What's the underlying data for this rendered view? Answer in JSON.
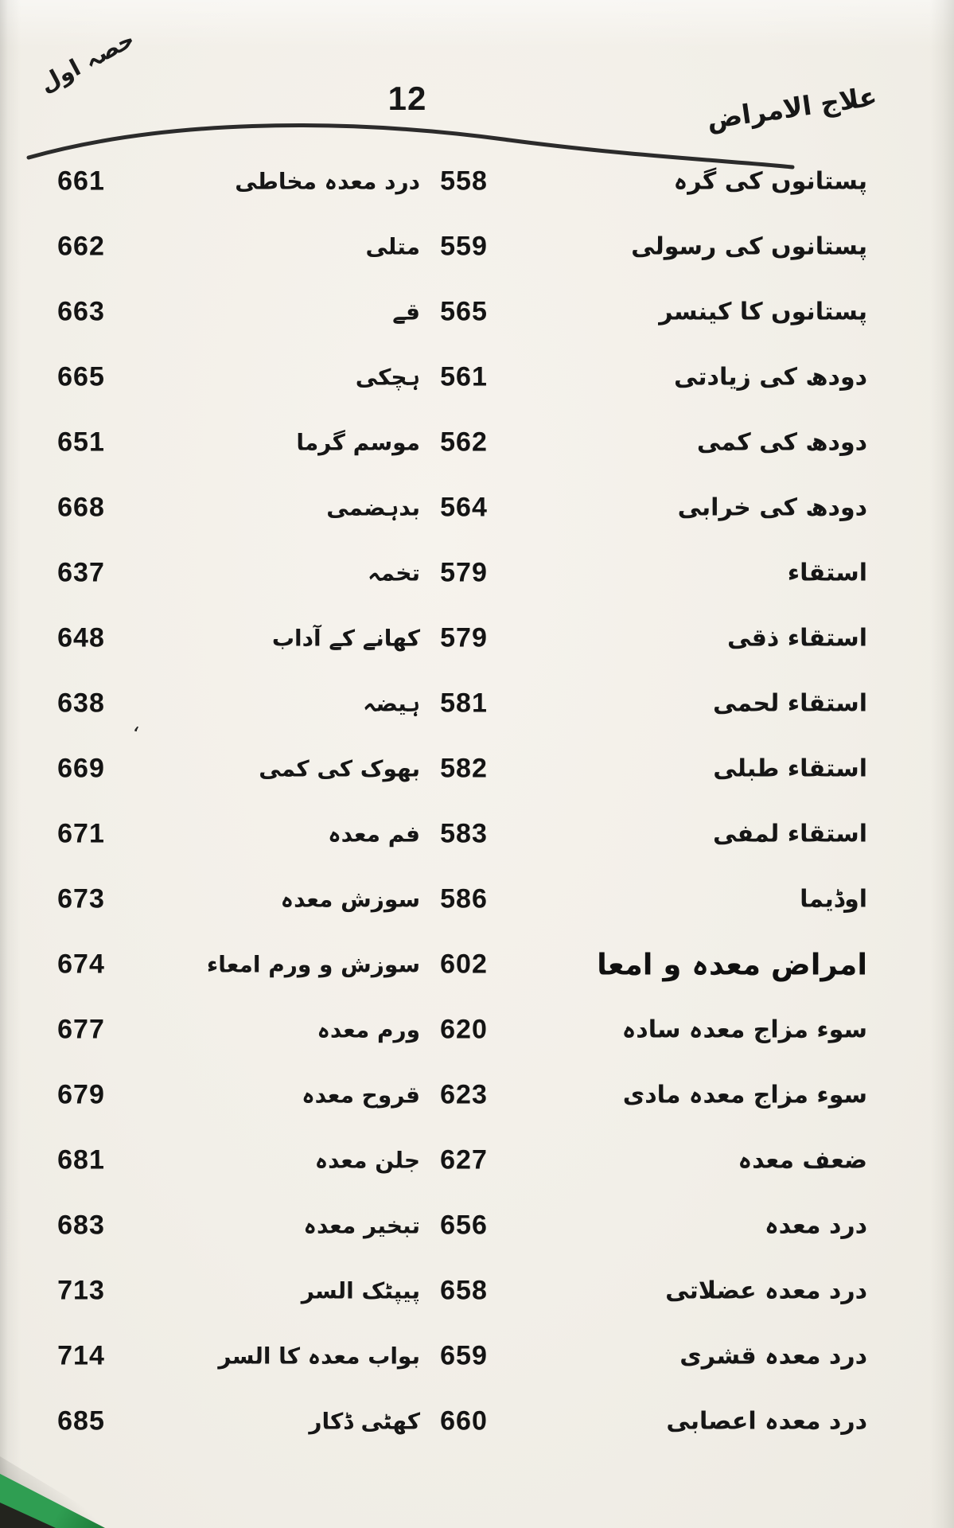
{
  "header": {
    "left": "حصہ اول",
    "page_number": "12",
    "right": "علاج الامراض"
  },
  "stray_mark": "،",
  "colors": {
    "ink": "#1b1b1b",
    "paper": "#f2efe8",
    "green_cover": "#2f9e52",
    "green_cover_dark": "#1d7a38",
    "corner_shadow": "#23241e"
  },
  "index": {
    "rows": [
      {
        "left_page": "661",
        "left_title": "درد معدہ مخاطی",
        "right_page": "558",
        "right_title": "پستانوں کی گرہ",
        "right_section": false
      },
      {
        "left_page": "662",
        "left_title": "متلی",
        "right_page": "559",
        "right_title": "پستانوں کی رسولی",
        "right_section": false
      },
      {
        "left_page": "663",
        "left_title": "قے",
        "right_page": "565",
        "right_title": "پستانوں کا کینسر",
        "right_section": false
      },
      {
        "left_page": "665",
        "left_title": "ہچکی",
        "right_page": "561",
        "right_title": "دودھ کی زیادتی",
        "right_section": false
      },
      {
        "left_page": "651",
        "left_title": "موسم گرما",
        "right_page": "562",
        "right_title": "دودھ کی کمی",
        "right_section": false
      },
      {
        "left_page": "668",
        "left_title": "بدہضمی",
        "right_page": "564",
        "right_title": "دودھ کی خرابی",
        "right_section": false
      },
      {
        "left_page": "637",
        "left_title": "تخمہ",
        "right_page": "579",
        "right_title": "استقاء",
        "right_section": false
      },
      {
        "left_page": "648",
        "left_title": "کھانے کے آداب",
        "right_page": "579",
        "right_title": "استقاء ذقی",
        "right_section": false
      },
      {
        "left_page": "638",
        "left_title": "ہیضہ",
        "right_page": "581",
        "right_title": "استقاء لحمی",
        "right_section": false
      },
      {
        "left_page": "669",
        "left_title": "بھوک کی کمی",
        "right_page": "582",
        "right_title": "استقاء طبلی",
        "right_section": false
      },
      {
        "left_page": "671",
        "left_title": "فم معدہ",
        "right_page": "583",
        "right_title": "استقاء لمفی",
        "right_section": false
      },
      {
        "left_page": "673",
        "left_title": "سوزش معدہ",
        "right_page": "586",
        "right_title": "اوڈیما",
        "right_section": false
      },
      {
        "left_page": "674",
        "left_title": "سوزش و ورم امعاء",
        "right_page": "602",
        "right_title": "امراض معدہ و امعا",
        "right_section": true
      },
      {
        "left_page": "677",
        "left_title": "ورم معدہ",
        "right_page": "620",
        "right_title": "سوء مزاج معدہ سادہ",
        "right_section": false
      },
      {
        "left_page": "679",
        "left_title": "قروح معدہ",
        "right_page": "623",
        "right_title": "سوء مزاج معدہ مادی",
        "right_section": false
      },
      {
        "left_page": "681",
        "left_title": "جلن معدہ",
        "right_page": "627",
        "right_title": "ضعف معدہ",
        "right_section": false
      },
      {
        "left_page": "683",
        "left_title": "تبخیر معدہ",
        "right_page": "656",
        "right_title": "درد معدہ",
        "right_section": false
      },
      {
        "left_page": "713",
        "left_title": "پیپٹک السر",
        "right_page": "658",
        "right_title": "درد معدہ عضلاتی",
        "right_section": false
      },
      {
        "left_page": "714",
        "left_title": "بواب معدہ کا السر",
        "right_page": "659",
        "right_title": "درد معدہ قشری",
        "right_section": false
      },
      {
        "left_page": "685",
        "left_title": "کھٹی ڈکار",
        "right_page": "660",
        "right_title": "درد معدہ اعصابی",
        "right_section": false
      }
    ]
  }
}
